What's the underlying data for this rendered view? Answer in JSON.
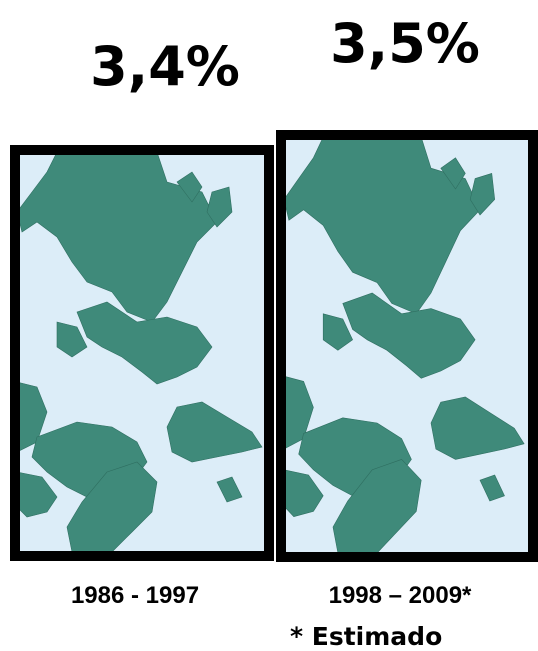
{
  "panels": [
    {
      "value": "3,4%",
      "period": "1986 - 1997"
    },
    {
      "value": "3,5%",
      "period": "1998 – 2009*"
    }
  ],
  "footnote": "* Estimado"
}
